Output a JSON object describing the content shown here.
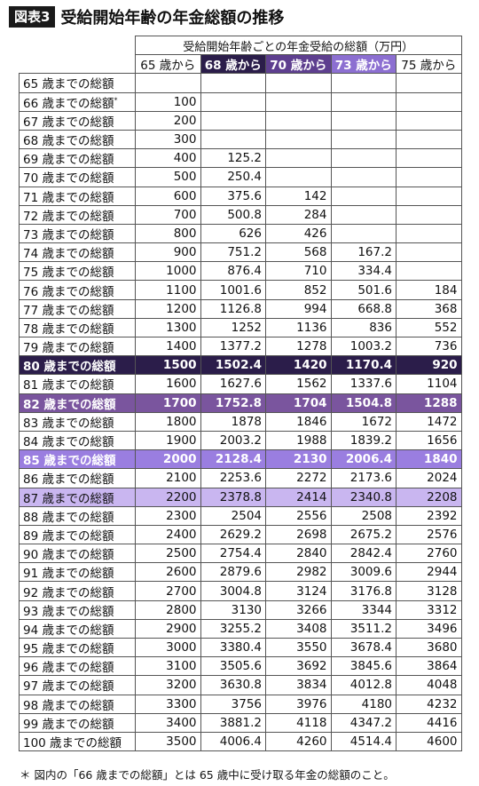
{
  "title": {
    "badge": "図表3",
    "text": "受給開始年齢の年金総額の推移"
  },
  "table": {
    "group_header": "受給開始年齢ごとの年金受給の総額（万円）",
    "columns": [
      "65 歳から",
      "68 歳から",
      "70 歳から",
      "73 歳から",
      "75 歳から"
    ],
    "rows": [
      {
        "label": "65 歳までの総額",
        "values": [
          "",
          "",
          "",
          "",
          ""
        ]
      },
      {
        "label": "66 歳までの総額",
        "note": "*",
        "values": [
          "100",
          "",
          "",
          "",
          ""
        ]
      },
      {
        "label": "67 歳までの総額",
        "values": [
          "200",
          "",
          "",
          "",
          ""
        ]
      },
      {
        "label": "68 歳までの総額",
        "values": [
          "300",
          "",
          "",
          "",
          ""
        ]
      },
      {
        "label": "69 歳までの総額",
        "values": [
          "400",
          "125.2",
          "",
          "",
          ""
        ]
      },
      {
        "label": "70 歳までの総額",
        "values": [
          "500",
          "250.4",
          "",
          "",
          ""
        ]
      },
      {
        "label": "71 歳までの総額",
        "values": [
          "600",
          "375.6",
          "142",
          "",
          ""
        ]
      },
      {
        "label": "72 歳までの総額",
        "values": [
          "700",
          "500.8",
          "284",
          "",
          ""
        ]
      },
      {
        "label": "73 歳までの総額",
        "values": [
          "800",
          "626",
          "426",
          "",
          ""
        ]
      },
      {
        "label": "74 歳までの総額",
        "values": [
          "900",
          "751.2",
          "568",
          "167.2",
          ""
        ]
      },
      {
        "label": "75 歳までの総額",
        "values": [
          "1000",
          "876.4",
          "710",
          "334.4",
          ""
        ]
      },
      {
        "label": "76 歳までの総額",
        "values": [
          "1100",
          "1001.6",
          "852",
          "501.6",
          "184"
        ]
      },
      {
        "label": "77 歳までの総額",
        "values": [
          "1200",
          "1126.8",
          "994",
          "668.8",
          "368"
        ]
      },
      {
        "label": "78 歳までの総額",
        "values": [
          "1300",
          "1252",
          "1136",
          "836",
          "552"
        ]
      },
      {
        "label": "79 歳までの総額",
        "values": [
          "1400",
          "1377.2",
          "1278",
          "1003.2",
          "736"
        ]
      },
      {
        "label": "80 歳までの総額",
        "highlight": "hl80",
        "values": [
          "1500",
          "1502.4",
          "1420",
          "1170.4",
          "920"
        ]
      },
      {
        "label": "81 歳までの総額",
        "values": [
          "1600",
          "1627.6",
          "1562",
          "1337.6",
          "1104"
        ]
      },
      {
        "label": "82 歳までの総額",
        "highlight": "hl82",
        "values": [
          "1700",
          "1752.8",
          "1704",
          "1504.8",
          "1288"
        ]
      },
      {
        "label": "83 歳までの総額",
        "values": [
          "1800",
          "1878",
          "1846",
          "1672",
          "1472"
        ]
      },
      {
        "label": "84 歳までの総額",
        "values": [
          "1900",
          "2003.2",
          "1988",
          "1839.2",
          "1656"
        ]
      },
      {
        "label": "85 歳までの総額",
        "highlight": "hl85",
        "values": [
          "2000",
          "2128.4",
          "2130",
          "2006.4",
          "1840"
        ]
      },
      {
        "label": "86 歳までの総額",
        "values": [
          "2100",
          "2253.6",
          "2272",
          "2173.6",
          "2024"
        ]
      },
      {
        "label": "87 歳までの総額",
        "highlight": "hl87",
        "values": [
          "2200",
          "2378.8",
          "2414",
          "2340.8",
          "2208"
        ]
      },
      {
        "label": "88 歳までの総額",
        "values": [
          "2300",
          "2504",
          "2556",
          "2508",
          "2392"
        ]
      },
      {
        "label": "89 歳までの総額",
        "values": [
          "2400",
          "2629.2",
          "2698",
          "2675.2",
          "2576"
        ]
      },
      {
        "label": "90 歳までの総額",
        "values": [
          "2500",
          "2754.4",
          "2840",
          "2842.4",
          "2760"
        ]
      },
      {
        "label": "91 歳までの総額",
        "values": [
          "2600",
          "2879.6",
          "2982",
          "3009.6",
          "2944"
        ]
      },
      {
        "label": "92 歳までの総額",
        "values": [
          "2700",
          "3004.8",
          "3124",
          "3176.8",
          "3128"
        ]
      },
      {
        "label": "93 歳までの総額",
        "values": [
          "2800",
          "3130",
          "3266",
          "3344",
          "3312"
        ]
      },
      {
        "label": "94 歳までの総額",
        "values": [
          "2900",
          "3255.2",
          "3408",
          "3511.2",
          "3496"
        ]
      },
      {
        "label": "95 歳までの総額",
        "values": [
          "3000",
          "3380.4",
          "3550",
          "3678.4",
          "3680"
        ]
      },
      {
        "label": "96 歳までの総額",
        "values": [
          "3100",
          "3505.6",
          "3692",
          "3845.6",
          "3864"
        ]
      },
      {
        "label": "97 歳までの総額",
        "values": [
          "3200",
          "3630.8",
          "3834",
          "4012.8",
          "4048"
        ]
      },
      {
        "label": "98 歳までの総額",
        "values": [
          "3300",
          "3756",
          "3976",
          "4180",
          "4232"
        ]
      },
      {
        "label": "99 歳までの総額",
        "values": [
          "3400",
          "3881.2",
          "4118",
          "4347.2",
          "4416"
        ]
      },
      {
        "label": "100 歳までの総額",
        "values": [
          "3500",
          "4006.4",
          "4260",
          "4514.4",
          "4600"
        ]
      }
    ]
  },
  "footnote": "＊ 図内の「66 歳までの総額」とは 65 歳中に受け取る年金の総額のこと。",
  "colors": {
    "dark": "#2b1d4a",
    "purple": "#7a559e",
    "violet": "#9a7ee0",
    "lavender": "#c9b6f0"
  }
}
